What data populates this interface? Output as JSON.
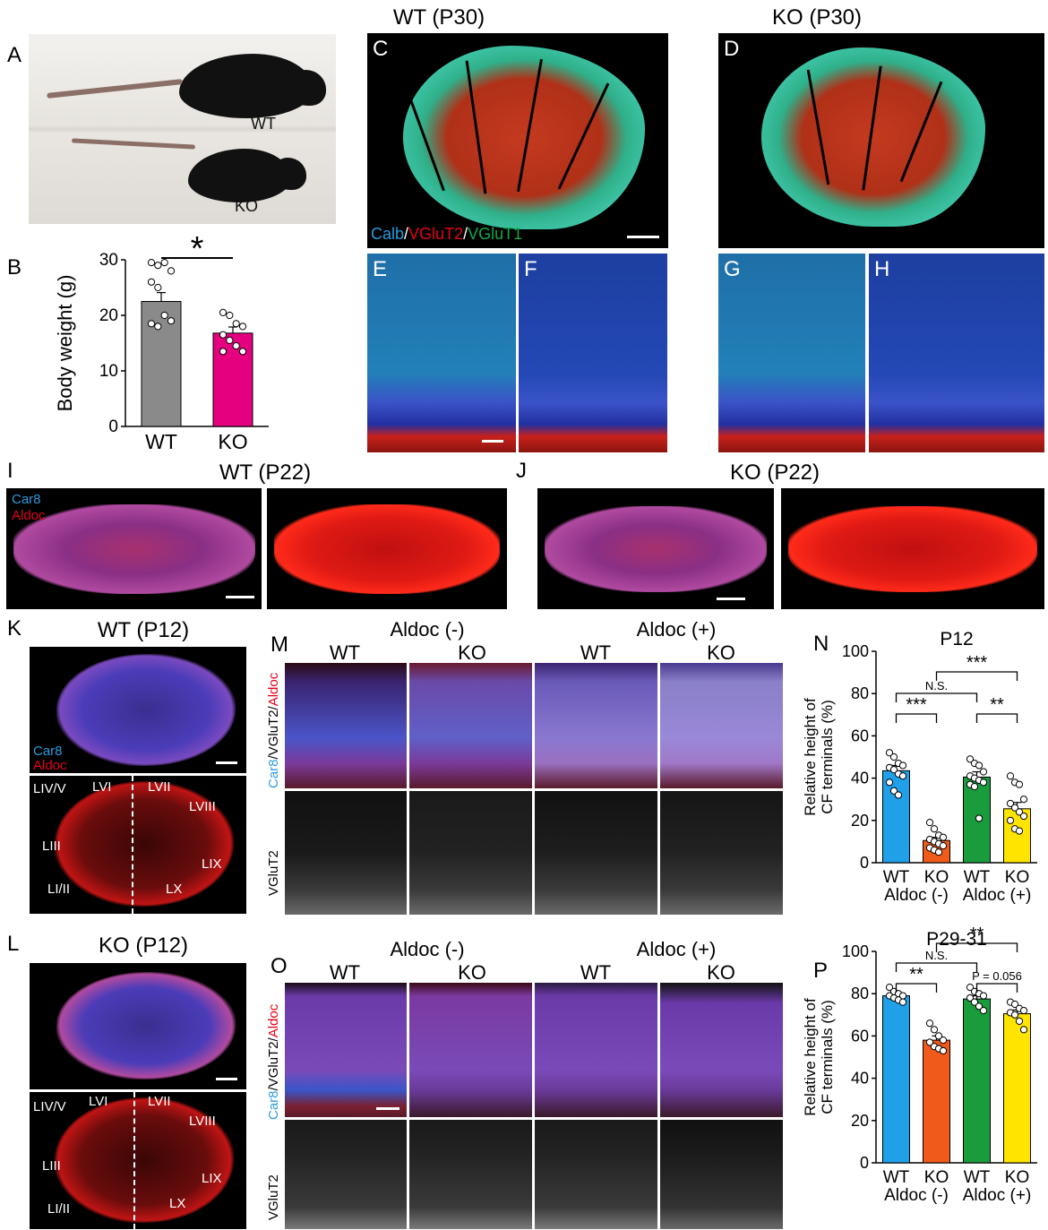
{
  "panels": {
    "A": "A",
    "B": "B",
    "C": "C",
    "D": "D",
    "E": "E",
    "F": "F",
    "G": "G",
    "H": "H",
    "I": "I",
    "J": "J",
    "K": "K",
    "L": "L",
    "M": "M",
    "N": "N",
    "O": "O",
    "P": "P"
  },
  "titles": {
    "wt_p30": "WT (P30)",
    "ko_p30": "KO (P30)",
    "wt_p22": "WT (P22)",
    "ko_p22": "KO (P22)",
    "wt_p12": "WT (P12)",
    "ko_p12": "KO (P12)"
  },
  "photo": {
    "wt": "WT",
    "ko": "KO"
  },
  "stain_c": {
    "calb": "Calb",
    "sep1": "/",
    "vglut2": "VGluT2",
    "sep2": "/",
    "vglut1": "VGluT1"
  },
  "stain_i": {
    "car8": "Car8",
    "aldoc": "Aldoc"
  },
  "stain_k": {
    "car8": "Car8",
    "aldoc": "Aldoc"
  },
  "lobules": {
    "l45": "LIV/V",
    "l6": "LVI",
    "l7": "LVII",
    "l8": "LVIII",
    "l3": "LIII",
    "l9": "LIX",
    "l12": "LI/II",
    "l10": "LX"
  },
  "m_panel": {
    "aldoc_neg": "Aldoc (-)",
    "aldoc_pos": "Aldoc (+)",
    "wt": "WT",
    "ko": "KO",
    "ylab_car8": "Car8",
    "ylab_sep1": "/",
    "ylab_vglut2": "VGluT2",
    "ylab_sep2": "/",
    "ylab_aldoc": "Aldoc",
    "vglut2": "VGluT2"
  },
  "colors": {
    "wt_gray": "#8a8a8a",
    "ko_magenta": "#e5007f",
    "wt_blue": "#1fa0e8",
    "ko_orange": "#f05a1a",
    "wt_green": "#1a9b3c",
    "ko_yellow": "#ffe400",
    "calb_blue": "#2a9be0",
    "vglut2_red": "#e6001a",
    "vglut1_green": "#11a84a"
  },
  "chart_data": [
    {
      "id": "B",
      "type": "bar",
      "categories": [
        "WT",
        "KO"
      ],
      "values": [
        22.5,
        16.8
      ],
      "sem": [
        1.6,
        1.1
      ],
      "points": [
        [
          29.5,
          29,
          29.5,
          28,
          26,
          25,
          20,
          19,
          18.5,
          18
        ],
        [
          20.5,
          20,
          18.5,
          18,
          16.5,
          15.5,
          14.5,
          13.5,
          13.5
        ]
      ],
      "ylabel": "Body weight (g)",
      "yticks": [
        0,
        10,
        20,
        30
      ],
      "ylim": [
        0,
        30
      ],
      "sig": "*"
    },
    {
      "id": "N",
      "type": "bar",
      "title": "P12",
      "categories": [
        "WT",
        "KO",
        "WT",
        "KO"
      ],
      "group_labels": [
        "Aldoc (-)",
        "Aldoc (+)"
      ],
      "values": [
        43.5,
        10.5,
        40.5,
        25.5
      ],
      "sem": [
        2.5,
        1.5,
        2.5,
        3.0
      ],
      "points": [
        [
          52,
          50,
          47,
          46,
          45,
          44,
          42,
          41,
          38,
          34,
          32
        ],
        [
          19,
          16,
          13,
          12,
          11,
          10,
          9,
          8,
          7,
          6,
          5
        ],
        [
          49,
          47,
          46,
          43,
          41,
          40,
          39,
          38,
          37,
          36,
          21
        ],
        [
          41,
          38,
          37,
          30,
          28,
          26,
          24,
          22,
          20,
          16,
          15
        ]
      ],
      "ylabel": "Relative height of CF terminals (%)",
      "yticks": [
        0,
        20,
        40,
        60,
        80,
        100
      ],
      "ylim": [
        0,
        100
      ],
      "sig": [
        {
          "label": "N.S.",
          "from": 0,
          "to": 2
        },
        {
          "label": "***",
          "from": 1,
          "to": 3
        },
        {
          "label": "***",
          "from": 0,
          "to": 1
        },
        {
          "label": "**",
          "from": 2,
          "to": 3
        }
      ]
    },
    {
      "id": "P",
      "type": "bar",
      "title": "P29-31",
      "categories": [
        "WT",
        "KO",
        "WT",
        "KO"
      ],
      "group_labels": [
        "Aldoc (-)",
        "Aldoc (+)"
      ],
      "values": [
        79,
        58,
        77.5,
        70.5
      ],
      "sem": [
        1.0,
        2.0,
        1.5,
        1.8
      ],
      "points": [
        [
          83,
          81,
          80,
          79,
          79,
          78,
          77,
          76
        ],
        [
          66,
          63,
          60,
          58,
          57,
          55,
          54,
          53
        ],
        [
          83,
          81,
          80,
          79,
          78,
          76,
          74,
          72
        ],
        [
          76,
          75,
          73,
          72,
          71,
          70,
          67,
          63
        ]
      ],
      "ylabel": "Relative height of CF terminals (%)",
      "yticks": [
        0,
        20,
        40,
        60,
        80,
        100
      ],
      "ylim": [
        0,
        100
      ],
      "sig": [
        {
          "label": "N.S.",
          "from": 0,
          "to": 2
        },
        {
          "label": "**",
          "from": 1,
          "to": 3
        },
        {
          "label": "**",
          "from": 0,
          "to": 1
        },
        {
          "label": "P = 0.056",
          "from": 2,
          "to": 3
        }
      ]
    }
  ]
}
